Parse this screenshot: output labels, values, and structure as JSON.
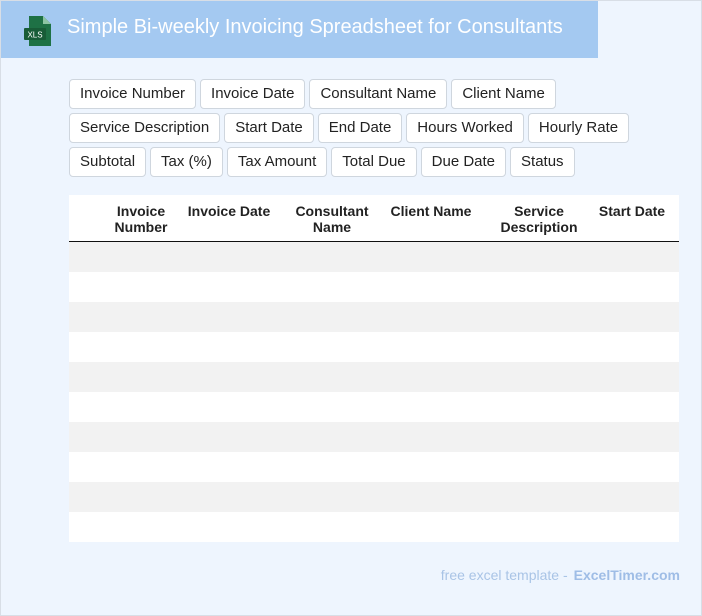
{
  "header": {
    "title": "Simple Bi-weekly Invoicing Spreadsheet for Consultants"
  },
  "fields": [
    "Invoice Number",
    "Invoice Date",
    "Consultant Name",
    "Client Name",
    "Service Description",
    "Start Date",
    "End Date",
    "Hours Worked",
    "Hourly Rate",
    "Subtotal",
    "Tax (%)",
    "Tax Amount",
    "Total Due",
    "Due Date",
    "Status"
  ],
  "table": {
    "headers": [
      "Invoice Number",
      "Invoice Date",
      "Consultant Name",
      "Client Name",
      "Service Description",
      "Start Date"
    ]
  },
  "footer": {
    "text": "free excel template -",
    "site": "ExcelTimer.com"
  }
}
